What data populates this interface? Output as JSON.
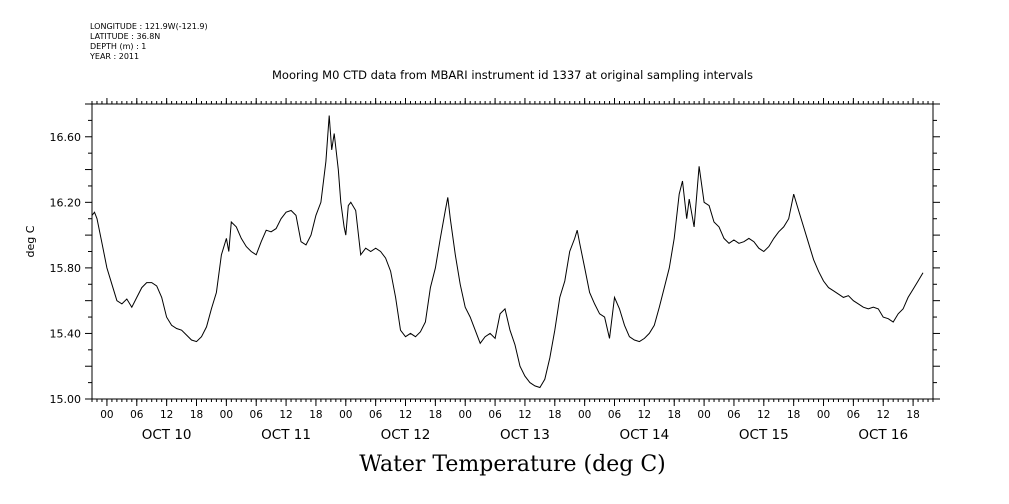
{
  "header": {
    "longitude": "LONGITUDE : 121.9W(-121.9)",
    "latitude": "LATITUDE : 36.8N",
    "depth": "DEPTH (m) : 1",
    "year": "YEAR : 2011"
  },
  "footer_title": "Water Temperature (deg C)",
  "chart_data": {
    "type": "line",
    "title": "Mooring M0 CTD data from MBARI instrument id 1337 at original sampling intervals",
    "xlabel": "",
    "ylabel": "deg C",
    "xlim": [
      "Oct 9 21:00",
      "Oct 16 22:00"
    ],
    "ylim": [
      15.0,
      16.8
    ],
    "y_ticks": [
      "15.00",
      "15.40",
      "15.80",
      "16.20",
      "16.60"
    ],
    "x_ticks": [
      {
        "time": "Oct 10 00:00",
        "label": "00"
      },
      {
        "time": "Oct 10 06:00",
        "label": "06"
      },
      {
        "time": "Oct 10 12:00",
        "label": "12"
      },
      {
        "time": "Oct 10 18:00",
        "label": "18"
      },
      {
        "time": "Oct 11 00:00",
        "label": "00"
      },
      {
        "time": "Oct 11 06:00",
        "label": "06"
      },
      {
        "time": "Oct 11 12:00",
        "label": "12"
      },
      {
        "time": "Oct 11 18:00",
        "label": "18"
      },
      {
        "time": "Oct 12 00:00",
        "label": "00"
      },
      {
        "time": "Oct 12 06:00",
        "label": "06"
      },
      {
        "time": "Oct 12 12:00",
        "label": "12"
      },
      {
        "time": "Oct 12 18:00",
        "label": "18"
      },
      {
        "time": "Oct 13 00:00",
        "label": "00"
      },
      {
        "time": "Oct 13 06:00",
        "label": "06"
      },
      {
        "time": "Oct 13 12:00",
        "label": "12"
      },
      {
        "time": "Oct 13 18:00",
        "label": "18"
      },
      {
        "time": "Oct 14 00:00",
        "label": "00"
      },
      {
        "time": "Oct 14 06:00",
        "label": "06"
      },
      {
        "time": "Oct 14 12:00",
        "label": "12"
      },
      {
        "time": "Oct 14 18:00",
        "label": "18"
      },
      {
        "time": "Oct 15 00:00",
        "label": "00"
      },
      {
        "time": "Oct 15 06:00",
        "label": "06"
      },
      {
        "time": "Oct 15 12:00",
        "label": "12"
      },
      {
        "time": "Oct 15 18:00",
        "label": "18"
      },
      {
        "time": "Oct 16 00:00",
        "label": "00"
      },
      {
        "time": "Oct 16 06:00",
        "label": "06"
      },
      {
        "time": "Oct 16 12:00",
        "label": "12"
      },
      {
        "time": "Oct 16 18:00",
        "label": "18"
      }
    ],
    "day_labels": [
      {
        "time": "Oct 10 12:00",
        "label": "OCT 10"
      },
      {
        "time": "Oct 11 12:00",
        "label": "OCT 11"
      },
      {
        "time": "Oct 12 12:00",
        "label": "OCT 12"
      },
      {
        "time": "Oct 13 12:00",
        "label": "OCT 13"
      },
      {
        "time": "Oct 14 12:00",
        "label": "OCT 14"
      },
      {
        "time": "Oct 15 12:00",
        "label": "OCT 15"
      },
      {
        "time": "Oct 16 12:00",
        "label": "OCT 16"
      }
    ],
    "series": [
      {
        "color": "#000000",
        "points": [
          [
            "Oct 9 21:00",
            16.12
          ],
          [
            "Oct 9 21:30",
            16.14
          ],
          [
            "Oct 9 22:00",
            16.1
          ],
          [
            "Oct 9 23:00",
            15.95
          ],
          [
            "Oct 10 00:00",
            15.8
          ],
          [
            "Oct 10 01:00",
            15.7
          ],
          [
            "Oct 10 02:00",
            15.6
          ],
          [
            "Oct 10 03:00",
            15.58
          ],
          [
            "Oct 10 04:00",
            15.61
          ],
          [
            "Oct 10 05:00",
            15.56
          ],
          [
            "Oct 10 06:00",
            15.62
          ],
          [
            "Oct 10 07:00",
            15.68
          ],
          [
            "Oct 10 08:00",
            15.71
          ],
          [
            "Oct 10 09:00",
            15.71
          ],
          [
            "Oct 10 10:00",
            15.69
          ],
          [
            "Oct 10 11:00",
            15.62
          ],
          [
            "Oct 10 12:00",
            15.5
          ],
          [
            "Oct 10 13:00",
            15.45
          ],
          [
            "Oct 10 14:00",
            15.43
          ],
          [
            "Oct 10 15:00",
            15.42
          ],
          [
            "Oct 10 16:00",
            15.39
          ],
          [
            "Oct 10 17:00",
            15.36
          ],
          [
            "Oct 10 18:00",
            15.35
          ],
          [
            "Oct 10 19:00",
            15.38
          ],
          [
            "Oct 10 20:00",
            15.44
          ],
          [
            "Oct 10 21:00",
            15.55
          ],
          [
            "Oct 10 22:00",
            15.65
          ],
          [
            "Oct 10 23:00",
            15.88
          ],
          [
            "Oct 11 00:00",
            15.98
          ],
          [
            "Oct 11 00:30",
            15.9
          ],
          [
            "Oct 11 01:00",
            16.08
          ],
          [
            "Oct 11 02:00",
            16.05
          ],
          [
            "Oct 11 03:00",
            15.98
          ],
          [
            "Oct 11 04:00",
            15.93
          ],
          [
            "Oct 11 05:00",
            15.9
          ],
          [
            "Oct 11 06:00",
            15.88
          ],
          [
            "Oct 11 07:00",
            15.96
          ],
          [
            "Oct 11 08:00",
            16.03
          ],
          [
            "Oct 11 09:00",
            16.02
          ],
          [
            "Oct 11 10:00",
            16.04
          ],
          [
            "Oct 11 11:00",
            16.1
          ],
          [
            "Oct 11 12:00",
            16.14
          ],
          [
            "Oct 11 13:00",
            16.15
          ],
          [
            "Oct 11 14:00",
            16.12
          ],
          [
            "Oct 11 15:00",
            15.96
          ],
          [
            "Oct 11 16:00",
            15.94
          ],
          [
            "Oct 11 17:00",
            16.0
          ],
          [
            "Oct 11 18:00",
            16.12
          ],
          [
            "Oct 11 19:00",
            16.2
          ],
          [
            "Oct 11 20:00",
            16.45
          ],
          [
            "Oct 11 20:40",
            16.73
          ],
          [
            "Oct 11 21:10",
            16.52
          ],
          [
            "Oct 11 21:40",
            16.62
          ],
          [
            "Oct 11 22:30",
            16.4
          ],
          [
            "Oct 11 23:00",
            16.2
          ],
          [
            "Oct 11 23:40",
            16.05
          ],
          [
            "Oct 12 00:00",
            16.0
          ],
          [
            "Oct 12 00:30",
            16.18
          ],
          [
            "Oct 12 01:00",
            16.2
          ],
          [
            "Oct 12 02:00",
            16.15
          ],
          [
            "Oct 12 03:00",
            15.88
          ],
          [
            "Oct 12 04:00",
            15.92
          ],
          [
            "Oct 12 05:00",
            15.9
          ],
          [
            "Oct 12 06:00",
            15.92
          ],
          [
            "Oct 12 07:00",
            15.9
          ],
          [
            "Oct 12 08:00",
            15.86
          ],
          [
            "Oct 12 09:00",
            15.78
          ],
          [
            "Oct 12 10:00",
            15.62
          ],
          [
            "Oct 12 11:00",
            15.42
          ],
          [
            "Oct 12 12:00",
            15.38
          ],
          [
            "Oct 12 13:00",
            15.4
          ],
          [
            "Oct 12 14:00",
            15.38
          ],
          [
            "Oct 12 15:00",
            15.41
          ],
          [
            "Oct 12 16:00",
            15.47
          ],
          [
            "Oct 12 17:00",
            15.68
          ],
          [
            "Oct 12 18:00",
            15.8
          ],
          [
            "Oct 12 19:00",
            15.98
          ],
          [
            "Oct 12 20:00",
            16.15
          ],
          [
            "Oct 12 20:30",
            16.23
          ],
          [
            "Oct 12 21:00",
            16.1
          ],
          [
            "Oct 12 22:00",
            15.88
          ],
          [
            "Oct 12 23:00",
            15.7
          ],
          [
            "Oct 13 00:00",
            15.56
          ],
          [
            "Oct 13 01:00",
            15.5
          ],
          [
            "Oct 13 02:00",
            15.42
          ],
          [
            "Oct 13 03:00",
            15.34
          ],
          [
            "Oct 13 04:00",
            15.38
          ],
          [
            "Oct 13 05:00",
            15.4
          ],
          [
            "Oct 13 06:00",
            15.37
          ],
          [
            "Oct 13 07:00",
            15.52
          ],
          [
            "Oct 13 08:00",
            15.55
          ],
          [
            "Oct 13 09:00",
            15.42
          ],
          [
            "Oct 13 10:00",
            15.33
          ],
          [
            "Oct 13 11:00",
            15.2
          ],
          [
            "Oct 13 12:00",
            15.14
          ],
          [
            "Oct 13 13:00",
            15.1
          ],
          [
            "Oct 13 14:00",
            15.08
          ],
          [
            "Oct 13 15:00",
            15.07
          ],
          [
            "Oct 13 16:00",
            15.12
          ],
          [
            "Oct 13 17:00",
            15.25
          ],
          [
            "Oct 13 18:00",
            15.42
          ],
          [
            "Oct 13 19:00",
            15.62
          ],
          [
            "Oct 13 20:00",
            15.72
          ],
          [
            "Oct 13 21:00",
            15.9
          ],
          [
            "Oct 13 22:00",
            15.98
          ],
          [
            "Oct 13 22:30",
            16.03
          ],
          [
            "Oct 13 23:00",
            15.95
          ],
          [
            "Oct 14 00:00",
            15.8
          ],
          [
            "Oct 14 01:00",
            15.65
          ],
          [
            "Oct 14 02:00",
            15.58
          ],
          [
            "Oct 14 03:00",
            15.52
          ],
          [
            "Oct 14 04:00",
            15.5
          ],
          [
            "Oct 14 05:00",
            15.37
          ],
          [
            "Oct 14 06:00",
            15.62
          ],
          [
            "Oct 14 07:00",
            15.55
          ],
          [
            "Oct 14 08:00",
            15.45
          ],
          [
            "Oct 14 09:00",
            15.38
          ],
          [
            "Oct 14 10:00",
            15.36
          ],
          [
            "Oct 14 11:00",
            15.35
          ],
          [
            "Oct 14 12:00",
            15.37
          ],
          [
            "Oct 14 13:00",
            15.4
          ],
          [
            "Oct 14 14:00",
            15.45
          ],
          [
            "Oct 14 15:00",
            15.56
          ],
          [
            "Oct 14 16:00",
            15.68
          ],
          [
            "Oct 14 17:00",
            15.8
          ],
          [
            "Oct 14 18:00",
            15.98
          ],
          [
            "Oct 14 19:00",
            16.25
          ],
          [
            "Oct 14 19:40",
            16.33
          ],
          [
            "Oct 14 20:30",
            16.1
          ],
          [
            "Oct 14 21:00",
            16.22
          ],
          [
            "Oct 14 22:00",
            16.05
          ],
          [
            "Oct 14 23:00",
            16.42
          ],
          [
            "Oct 15 00:00",
            16.2
          ],
          [
            "Oct 15 01:00",
            16.18
          ],
          [
            "Oct 15 02:00",
            16.08
          ],
          [
            "Oct 15 03:00",
            16.05
          ],
          [
            "Oct 15 04:00",
            15.98
          ],
          [
            "Oct 15 05:00",
            15.95
          ],
          [
            "Oct 15 06:00",
            15.97
          ],
          [
            "Oct 15 07:00",
            15.95
          ],
          [
            "Oct 15 08:00",
            15.96
          ],
          [
            "Oct 15 09:00",
            15.98
          ],
          [
            "Oct 15 10:00",
            15.96
          ],
          [
            "Oct 15 11:00",
            15.92
          ],
          [
            "Oct 15 12:00",
            15.9
          ],
          [
            "Oct 15 13:00",
            15.93
          ],
          [
            "Oct 15 14:00",
            15.98
          ],
          [
            "Oct 15 15:00",
            16.02
          ],
          [
            "Oct 15 16:00",
            16.05
          ],
          [
            "Oct 15 17:00",
            16.1
          ],
          [
            "Oct 15 18:00",
            16.25
          ],
          [
            "Oct 15 19:00",
            16.15
          ],
          [
            "Oct 15 20:00",
            16.05
          ],
          [
            "Oct 15 21:00",
            15.95
          ],
          [
            "Oct 15 22:00",
            15.85
          ],
          [
            "Oct 15 23:00",
            15.78
          ],
          [
            "Oct 16 00:00",
            15.72
          ],
          [
            "Oct 16 01:00",
            15.68
          ],
          [
            "Oct 16 02:00",
            15.66
          ],
          [
            "Oct 16 03:00",
            15.64
          ],
          [
            "Oct 16 04:00",
            15.62
          ],
          [
            "Oct 16 05:00",
            15.63
          ],
          [
            "Oct 16 06:00",
            15.6
          ],
          [
            "Oct 16 07:00",
            15.58
          ],
          [
            "Oct 16 08:00",
            15.56
          ],
          [
            "Oct 16 09:00",
            15.55
          ],
          [
            "Oct 16 10:00",
            15.56
          ],
          [
            "Oct 16 11:00",
            15.55
          ],
          [
            "Oct 16 12:00",
            15.5
          ],
          [
            "Oct 16 13:00",
            15.49
          ],
          [
            "Oct 16 14:00",
            15.47
          ],
          [
            "Oct 16 15:00",
            15.52
          ],
          [
            "Oct 16 16:00",
            15.55
          ],
          [
            "Oct 16 17:00",
            15.62
          ],
          [
            "Oct 16 18:00",
            15.67
          ],
          [
            "Oct 16 19:00",
            15.72
          ],
          [
            "Oct 16 20:00",
            15.77
          ]
        ]
      }
    ]
  }
}
